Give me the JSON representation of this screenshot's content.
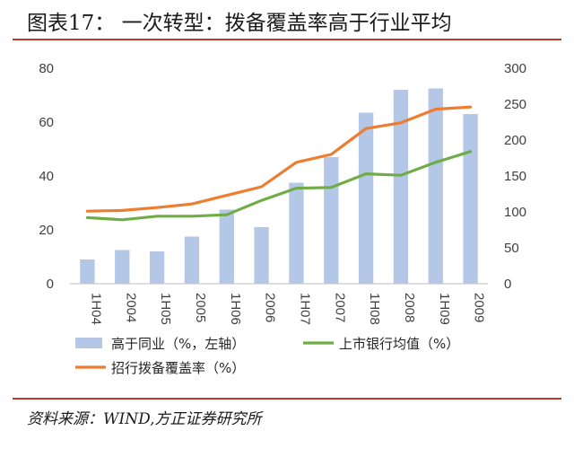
{
  "title": "图表17：  一次转型：拨备覆盖率高于行业平均",
  "source": "资料来源：WIND,方正证券研究所",
  "colors": {
    "bar": "#b4c7e7",
    "green": "#70ad47",
    "orange": "#ed7d31",
    "rule": "#c0392b"
  },
  "chart_data": {
    "type": "bar",
    "categories": [
      "1H04",
      "2004",
      "1H05",
      "2005",
      "1H06",
      "2006",
      "1H07",
      "2007",
      "1H08",
      "2008",
      "1H09",
      "2009"
    ],
    "y_left_lim": [
      0,
      80
    ],
    "y_left_ticks": [
      "0",
      "20",
      "40",
      "60",
      "80"
    ],
    "y_right_lim": [
      0,
      300
    ],
    "y_right_ticks": [
      "0",
      "50",
      "100",
      "150",
      "200",
      "250",
      "300"
    ],
    "grid": false,
    "legend_position": "bottom",
    "series": [
      {
        "name": "高于同业（%，左轴）",
        "type": "bar",
        "axis": "left",
        "values": [
          9,
          12.5,
          12,
          17.5,
          27.5,
          21,
          37.5,
          47,
          63.5,
          72,
          72.5,
          63
        ]
      },
      {
        "name": "上市银行均值（%）",
        "type": "line",
        "axis": "right",
        "values": [
          92,
          89,
          94,
          94,
          96,
          116,
          133,
          134,
          153,
          151,
          169,
          184
        ]
      },
      {
        "name": "招行拨备覆盖率（%）",
        "type": "line",
        "axis": "right",
        "values": [
          101,
          102,
          106,
          111,
          123,
          135,
          169,
          180,
          216,
          224,
          243,
          246
        ]
      }
    ]
  }
}
